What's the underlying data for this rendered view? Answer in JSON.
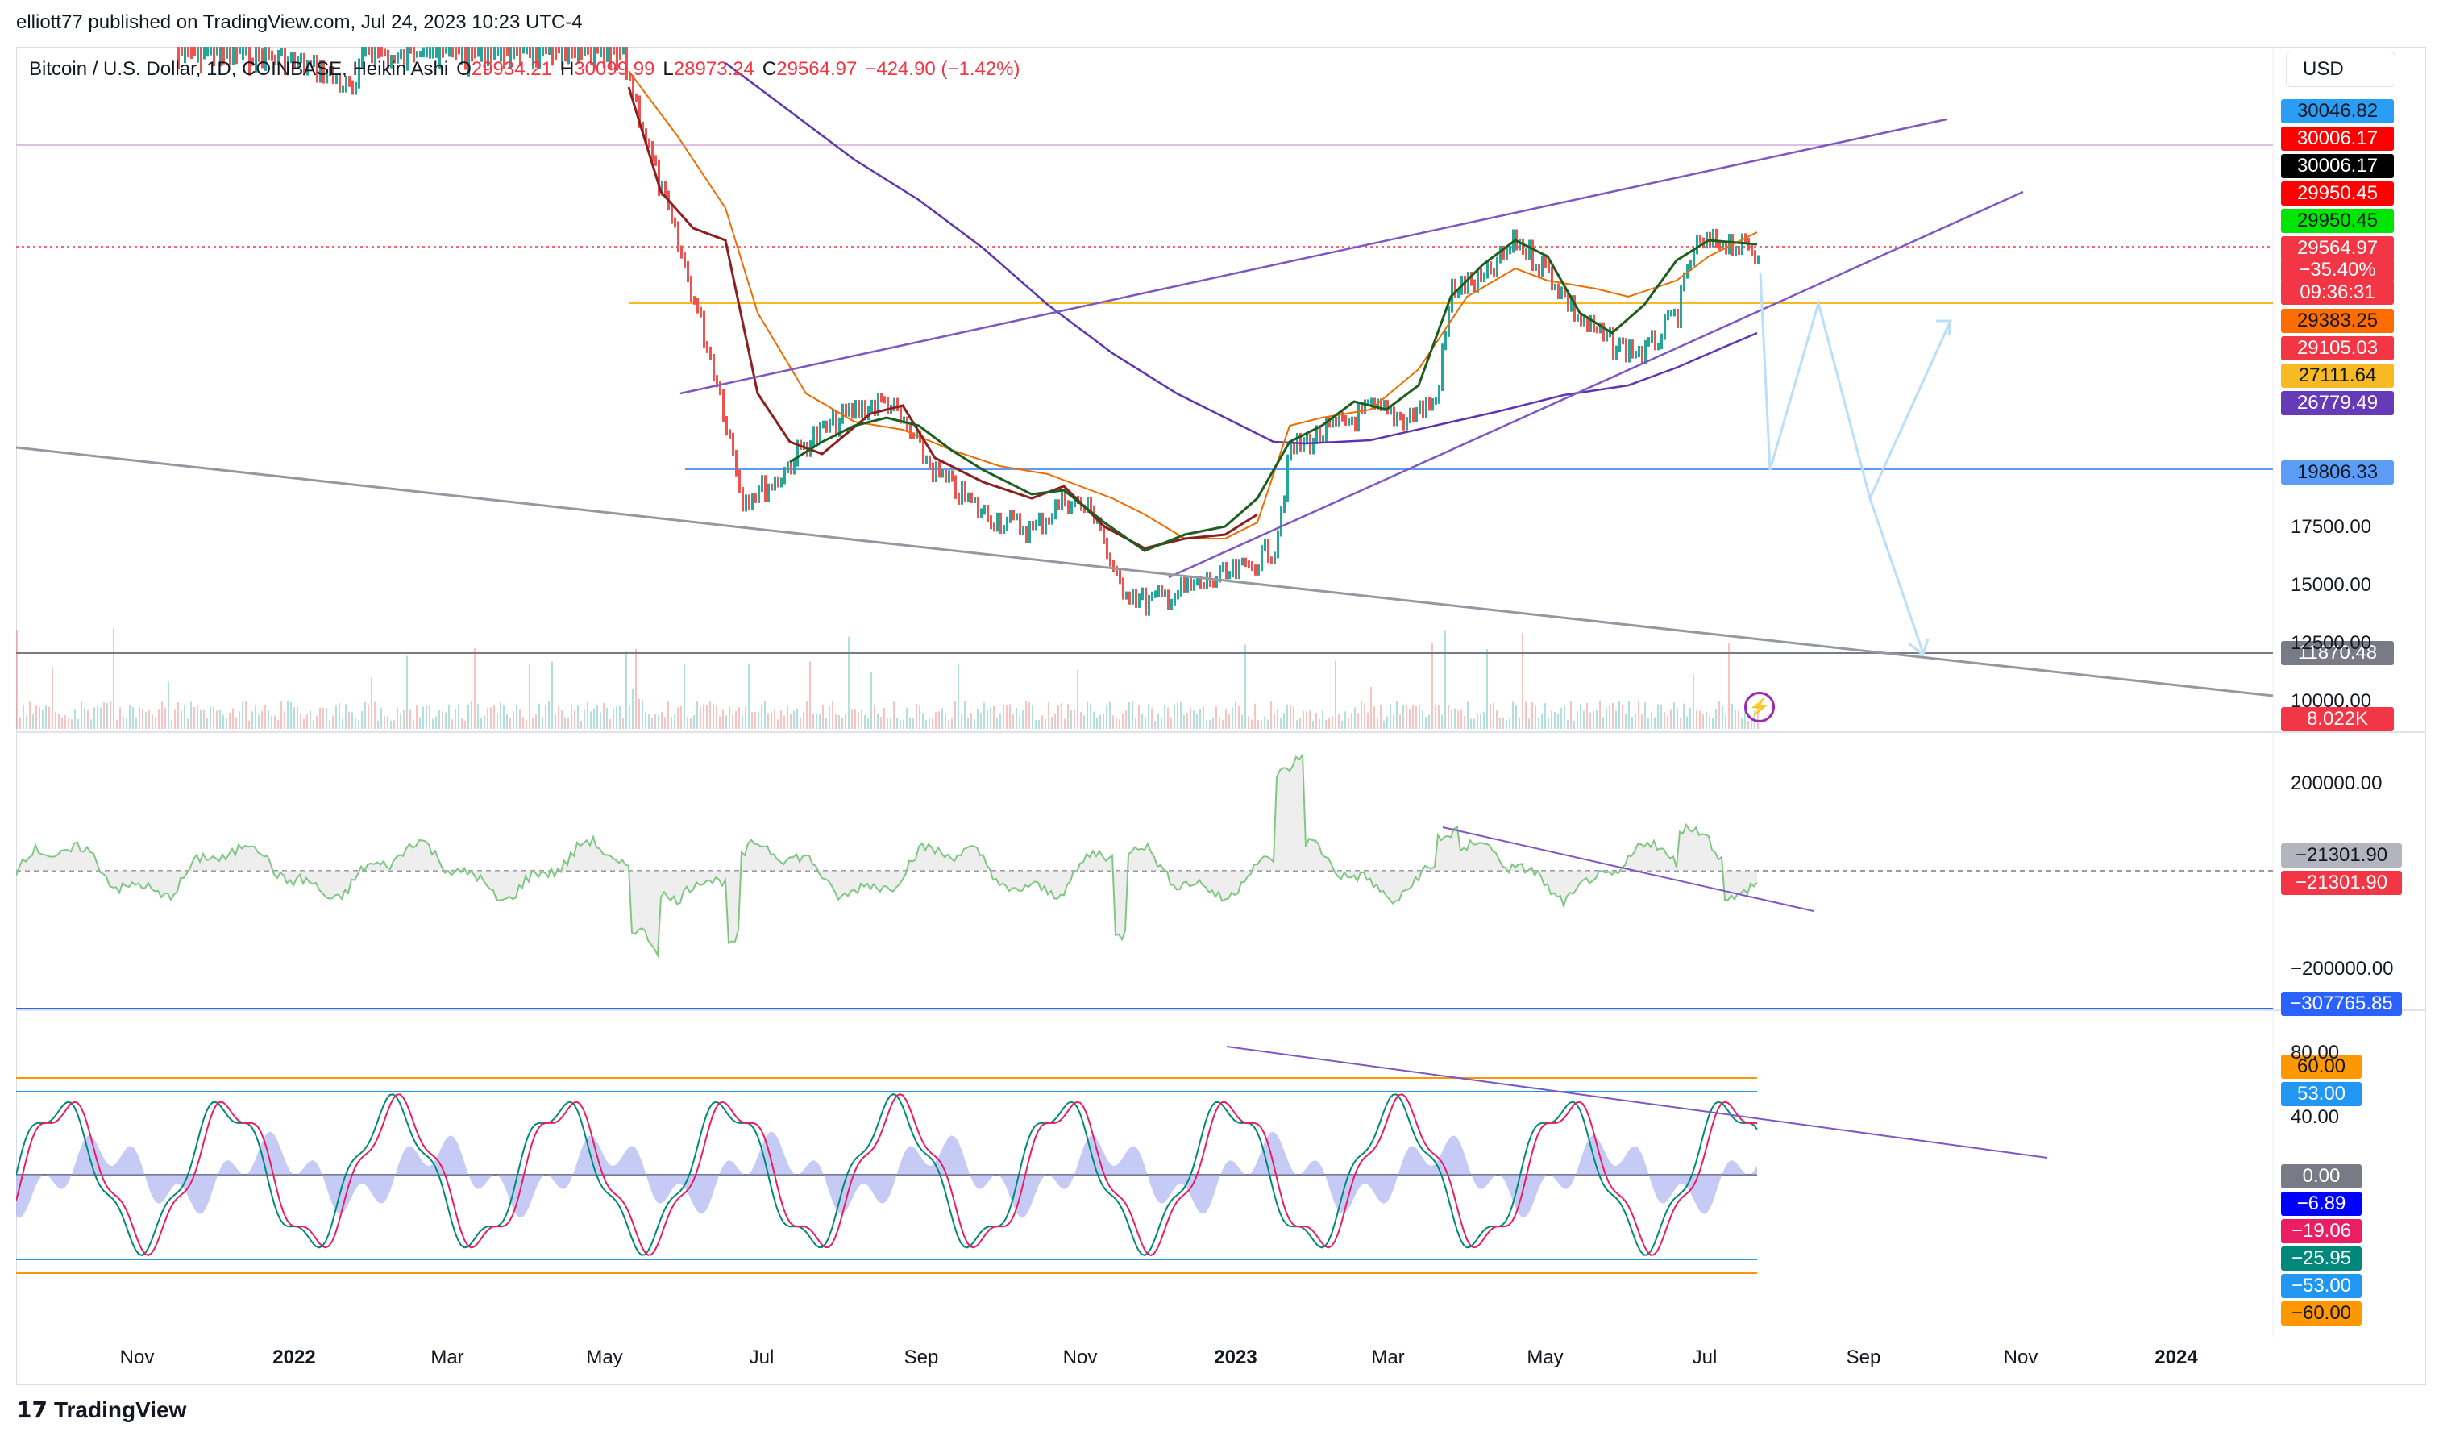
{
  "header": {
    "published": "elliott77 published on TradingView.com, Jul 24, 2023 10:23 UTC-4"
  },
  "legend": {
    "symbol": "Bitcoin / U.S. Dollar, 1D, COINBASE, Heikin Ashi",
    "o_key": "O",
    "o_val": "29934.21",
    "h_key": "H",
    "h_val": "30099.99",
    "l_key": "L",
    "l_val": "28973.24",
    "c_key": "C",
    "c_val": "29564.97",
    "change": "−424.90 (−1.42%)"
  },
  "currency": "USD",
  "price_tags": [
    {
      "label": "30046.82",
      "bg": "#2a9df4",
      "fg": "#131722"
    },
    {
      "label": "30006.17",
      "bg": "#ff0000",
      "fg": "#ffffff"
    },
    {
      "label": "30006.17",
      "bg": "#000000",
      "fg": "#ffffff"
    },
    {
      "label": "29950.45",
      "bg": "#ff0000",
      "fg": "#ffffff"
    },
    {
      "label": "29950.45",
      "bg": "#00e600",
      "fg": "#131722"
    },
    {
      "label": "29564.97",
      "bg": "#f23645",
      "fg": "#ffffff"
    },
    {
      "label": "−35.40%",
      "bg": "#f23645",
      "fg": "#ffffff"
    },
    {
      "label": "09:36:31",
      "bg": "#f23645",
      "fg": "#ffffff"
    },
    {
      "label": "29383.25",
      "bg": "#ff6d00",
      "fg": "#131722"
    },
    {
      "label": "29105.03",
      "bg": "#f23645",
      "fg": "#ffffff"
    },
    {
      "label": "27111.64",
      "bg": "#f7b924",
      "fg": "#131722"
    },
    {
      "label": "26779.49",
      "bg": "#673ab7",
      "fg": "#ffffff"
    },
    {
      "label": "19806.33",
      "bg": "#5b9cf6",
      "fg": "#131722"
    },
    {
      "label": "11870.48",
      "bg": "#787b86",
      "fg": "#ffffff"
    },
    {
      "label": "8.022K",
      "bg": "#f23645",
      "fg": "#ffffff"
    }
  ],
  "price_axis": [
    "17500.00",
    "15000.00",
    "12500.00",
    "10000.00"
  ],
  "osc1": {
    "axis": [
      "200000.00",
      "−200000.00"
    ],
    "tags": [
      {
        "label": "−21301.90",
        "bg": "#b2b5be",
        "fg": "#131722"
      },
      {
        "label": "−21301.90",
        "bg": "#f23645",
        "fg": "#ffffff"
      },
      {
        "label": "−307765.85",
        "bg": "#2962ff",
        "fg": "#ffffff"
      }
    ]
  },
  "osc2": {
    "axis": [
      "80.00",
      "40.00"
    ],
    "tags": [
      {
        "label": "60.00",
        "bg": "#ff9800",
        "fg": "#131722"
      },
      {
        "label": "53.00",
        "bg": "#2196f3",
        "fg": "#ffffff"
      },
      {
        "label": "0.00",
        "bg": "#787b86",
        "fg": "#ffffff"
      },
      {
        "label": "−6.89",
        "bg": "#0000ff",
        "fg": "#ffffff"
      },
      {
        "label": "−19.06",
        "bg": "#e91e63",
        "fg": "#ffffff"
      },
      {
        "label": "−25.95",
        "bg": "#00897b",
        "fg": "#ffffff"
      },
      {
        "label": "−53.00",
        "bg": "#2196f3",
        "fg": "#ffffff"
      },
      {
        "label": "−60.00",
        "bg": "#ff9800",
        "fg": "#131722"
      }
    ]
  },
  "time_axis": [
    {
      "label": "Nov",
      "bold": false
    },
    {
      "label": "2022",
      "bold": true
    },
    {
      "label": "Mar",
      "bold": false
    },
    {
      "label": "May",
      "bold": false
    },
    {
      "label": "Jul",
      "bold": false
    },
    {
      "label": "Sep",
      "bold": false
    },
    {
      "label": "Nov",
      "bold": false
    },
    {
      "label": "2023",
      "bold": true
    },
    {
      "label": "Mar",
      "bold": false
    },
    {
      "label": "May",
      "bold": false
    },
    {
      "label": "Jul",
      "bold": false
    },
    {
      "label": "Sep",
      "bold": false
    },
    {
      "label": "Nov",
      "bold": false
    },
    {
      "label": "2024",
      "bold": true
    }
  ],
  "footer": {
    "brand": "TradingView",
    "logo_glyph": "17"
  },
  "icons": {
    "alert": "lightning-icon"
  },
  "colors": {
    "up": "#26a69a",
    "down": "#ef5350",
    "trendline": "#7e57c2",
    "forecast_arrow": "#bbdefb",
    "ema_short": "#1b5e20",
    "ema_mid": "#8d1f1f",
    "ema_long": "#ef6c00",
    "ma_slow": "#5e35b1"
  }
}
